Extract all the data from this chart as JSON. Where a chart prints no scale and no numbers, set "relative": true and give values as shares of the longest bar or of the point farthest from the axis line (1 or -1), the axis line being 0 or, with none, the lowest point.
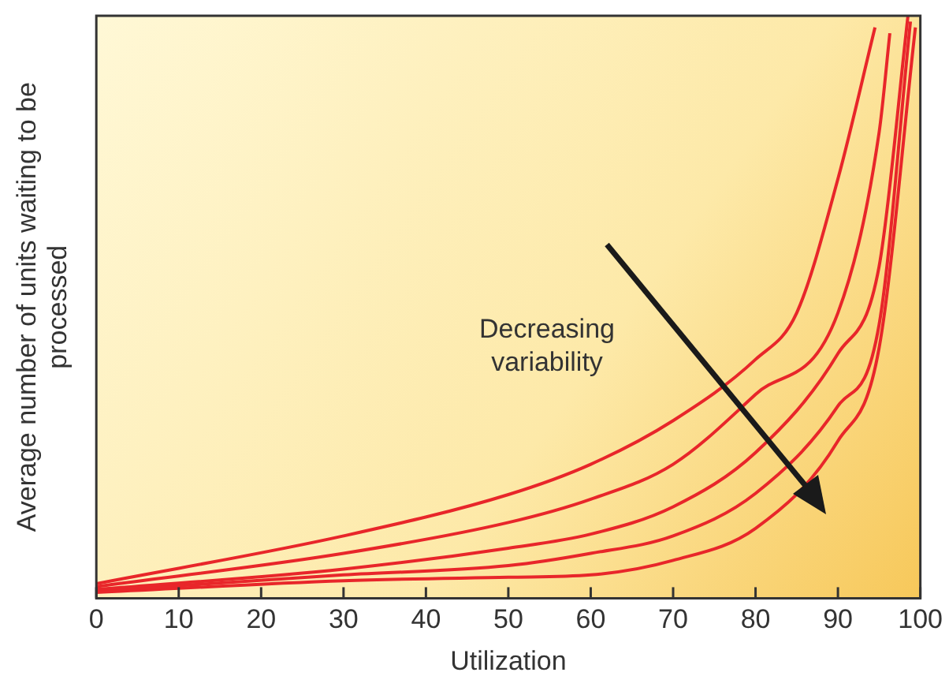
{
  "chart_data": {
    "type": "line",
    "relative": true,
    "xlabel": "Utilization",
    "ylabel": "Average number of units waiting to be processed",
    "xlim": [
      0,
      100
    ],
    "xticks": [
      0,
      10,
      20,
      30,
      40,
      50,
      60,
      70,
      80,
      90,
      100
    ],
    "grid": false,
    "legend": false,
    "marker": "none",
    "line_style": "solid",
    "annotations": [
      "Decreasing variability"
    ],
    "series": [
      {
        "color": "#e8262a",
        "x": [
          0,
          30,
          50,
          60,
          70,
          80,
          85,
          90,
          94.5
        ],
        "values": [
          0.025,
          0.107,
          0.178,
          0.23,
          0.305,
          0.41,
          0.49,
          0.72,
          0.98
        ]
      },
      {
        "color": "#e8262a",
        "x": [
          0,
          30,
          50,
          60,
          70,
          80,
          90,
          95,
          96.3
        ],
        "values": [
          0.02,
          0.077,
          0.13,
          0.17,
          0.23,
          0.35,
          0.49,
          0.8,
          0.97
        ]
      },
      {
        "color": "#e8262a",
        "x": [
          0,
          30,
          50,
          60,
          70,
          80,
          90,
          95,
          98.5
        ],
        "values": [
          0.015,
          0.05,
          0.086,
          0.11,
          0.157,
          0.25,
          0.42,
          0.57,
          1
        ]
      },
      {
        "color": "#e8262a",
        "x": [
          0,
          30,
          50,
          60,
          70,
          80,
          90,
          95,
          98.8
        ],
        "values": [
          0.012,
          0.04,
          0.056,
          0.077,
          0.107,
          0.18,
          0.33,
          0.47,
          0.99
        ]
      },
      {
        "color": "#e8262a",
        "x": [
          0,
          30,
          50,
          60,
          70,
          80,
          90,
          95,
          99.4
        ],
        "values": [
          0.01,
          0.03,
          0.036,
          0.04,
          0.065,
          0.12,
          0.27,
          0.43,
          0.98
        ]
      }
    ]
  }
}
